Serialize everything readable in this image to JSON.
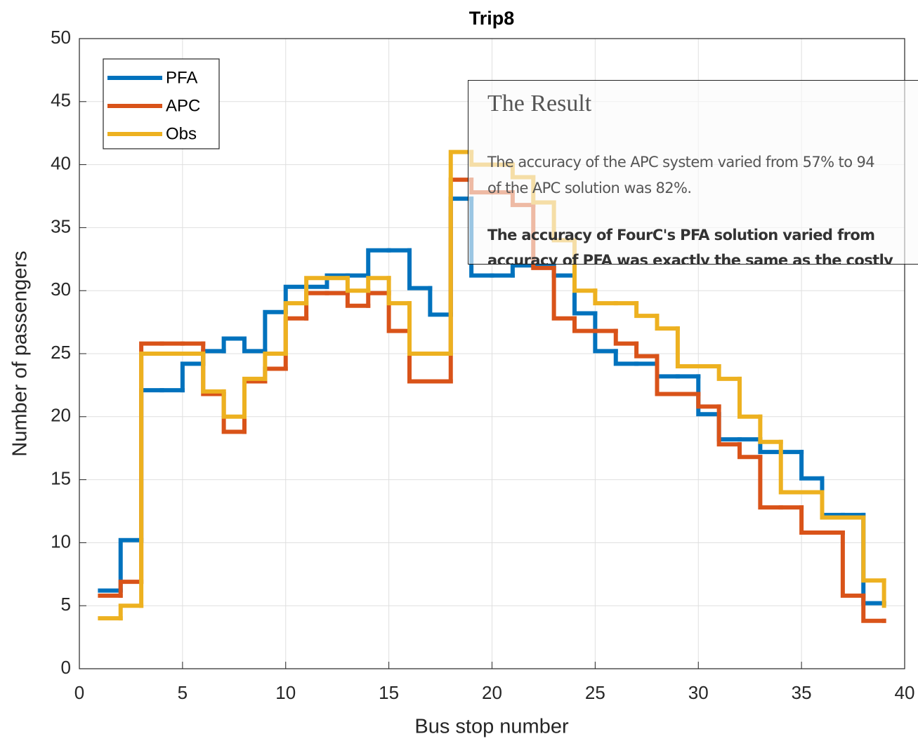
{
  "chart_data": {
    "type": "stairs",
    "title": "Trip8",
    "x_label": "Bus stop number",
    "y_label": "Number of passengers",
    "x": [
      1,
      2,
      3,
      4,
      5,
      6,
      7,
      8,
      9,
      10,
      11,
      12,
      13,
      14,
      15,
      16,
      17,
      18,
      19,
      20,
      21,
      22,
      23,
      24,
      25,
      26,
      27,
      28,
      29,
      30,
      31,
      32,
      33,
      34,
      35,
      36,
      37,
      38,
      39
    ],
    "series": [
      {
        "name": "PFA",
        "color": "#0072BD",
        "values": [
          6.2,
          10.2,
          22.1,
          22.1,
          24.2,
          25.2,
          26.2,
          25.2,
          28.3,
          30.3,
          30.3,
          31.2,
          31.2,
          33.2,
          33.2,
          30.2,
          28.1,
          37.3,
          31.2,
          31.2,
          32,
          32,
          31.2,
          28.2,
          25.2,
          24.2,
          24.2,
          23.2,
          23.2,
          20.2,
          18.2,
          18.2,
          17.2,
          17.2,
          15.1,
          12.2,
          12.2,
          5.2,
          5.2
        ]
      },
      {
        "name": "APC",
        "color": "#D95319",
        "values": [
          5.8,
          6.9,
          25.8,
          25.8,
          25.8,
          21.8,
          18.8,
          22.8,
          23.8,
          27.8,
          29.8,
          29.8,
          28.8,
          29.8,
          26.8,
          22.8,
          22.8,
          38.8,
          37.8,
          37.8,
          36.8,
          31.8,
          27.8,
          26.8,
          26.8,
          25.8,
          24.8,
          21.8,
          21.8,
          20.8,
          17.8,
          16.8,
          12.8,
          12.8,
          10.8,
          10.8,
          5.8,
          3.8,
          3.8
        ]
      },
      {
        "name": "Obs",
        "color": "#EDB120",
        "values": [
          4,
          5,
          25,
          25,
          25,
          22,
          20,
          23,
          25,
          29,
          31,
          31,
          30,
          31,
          29,
          25,
          25,
          41,
          40,
          40,
          39,
          37,
          34,
          30,
          29,
          29,
          28,
          27,
          24,
          24,
          23,
          20,
          18,
          14,
          14,
          12,
          12,
          7,
          5
        ]
      }
    ],
    "xlim": [
      0,
      40
    ],
    "xticks": [
      0,
      5,
      10,
      15,
      20,
      25,
      30,
      35,
      40
    ],
    "ylim": [
      0,
      50
    ],
    "yticks": [
      0,
      5,
      10,
      15,
      20,
      25,
      30,
      35,
      40,
      45,
      50
    ],
    "grid": true,
    "legend": "northwest"
  },
  "overlay": {
    "title": "The Result",
    "lines": [
      "The accuracy of the APC system varied from 57% to 94",
      "of the APC solution was 82%."
    ],
    "bold_lines": [
      "The accuracy of FourC's PFA solution varied from",
      "accuracy of PFA was exactly the same as the costly"
    ]
  }
}
